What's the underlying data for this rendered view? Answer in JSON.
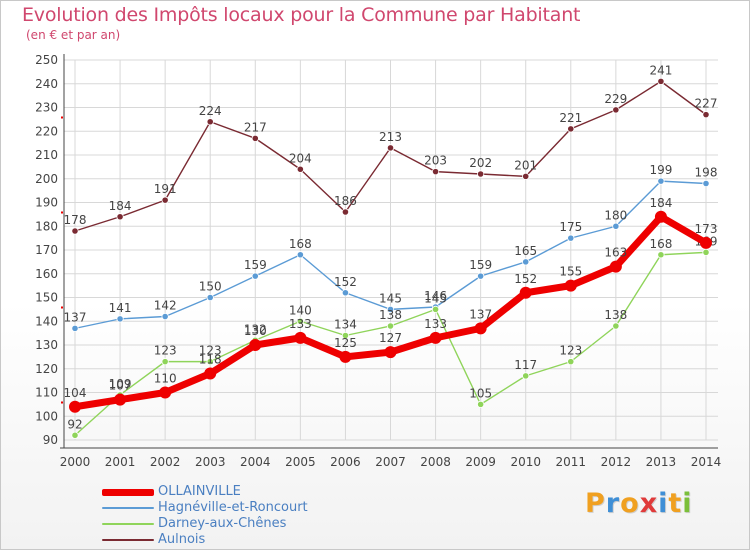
{
  "title": "Evolution des Impôts locaux pour la Commune par Habitant",
  "subtitle": "(en € et par an)",
  "logo": {
    "text": "Proxiti",
    "letters": [
      {
        "ch": "P",
        "color": "#f0a020"
      },
      {
        "ch": "r",
        "color": "#3f8fd6"
      },
      {
        "ch": "o",
        "color": "#f0a020"
      },
      {
        "ch": "x",
        "color": "#e03a3a"
      },
      {
        "ch": "i",
        "color": "#3f8fd6"
      },
      {
        "ch": "t",
        "color": "#f0a020"
      },
      {
        "ch": "i",
        "color": "#7bbf3a"
      }
    ]
  },
  "chart_data": {
    "type": "line",
    "title": "Evolution des Impôts locaux pour la Commune par Habitant",
    "ylabel": "(en € et par an)",
    "xlabel": "",
    "ylim": [
      90,
      250
    ],
    "yticks": [
      90,
      100,
      110,
      120,
      130,
      140,
      150,
      160,
      170,
      180,
      190,
      200,
      210,
      220,
      230,
      240,
      250
    ],
    "grid": true,
    "legend_position": "bottom-left",
    "categories": [
      "2000",
      "2001",
      "2002",
      "2003",
      "2004",
      "2005",
      "2006",
      "2007",
      "2008",
      "2009",
      "2010",
      "2011",
      "2012",
      "2013",
      "2014"
    ],
    "series": [
      {
        "name": "Aulnois",
        "color": "#7a2a32",
        "values": [
          178,
          184,
          191,
          224,
          217,
          204,
          186,
          213,
          203,
          202,
          201,
          221,
          229,
          241,
          227
        ]
      },
      {
        "name": "Hagnéville-et-Roncourt",
        "color": "#5b9bd5",
        "values": [
          137,
          141,
          142,
          150,
          159,
          168,
          152,
          145,
          146,
          159,
          165,
          175,
          180,
          199,
          198
        ]
      },
      {
        "name": "Darney-aux-Chênes",
        "color": "#8fd45a",
        "values": [
          92,
          109,
          123,
          123,
          132,
          140,
          134,
          138,
          145,
          105,
          117,
          123,
          138,
          168,
          169
        ]
      },
      {
        "name": "OLLAINVILLE",
        "color": "#ee0000",
        "values": [
          104,
          107,
          110,
          118,
          130,
          133,
          125,
          127,
          133,
          137,
          152,
          155,
          163,
          184,
          173
        ]
      }
    ]
  },
  "legend": [
    {
      "label": "OLLAINVILLE",
      "color": "#ee0000"
    },
    {
      "label": "Hagnéville-et-Roncourt",
      "color": "#5b9bd5"
    },
    {
      "label": "Darney-aux-Chênes",
      "color": "#8fd45a"
    },
    {
      "label": "Aulnois",
      "color": "#7a2a32"
    }
  ]
}
